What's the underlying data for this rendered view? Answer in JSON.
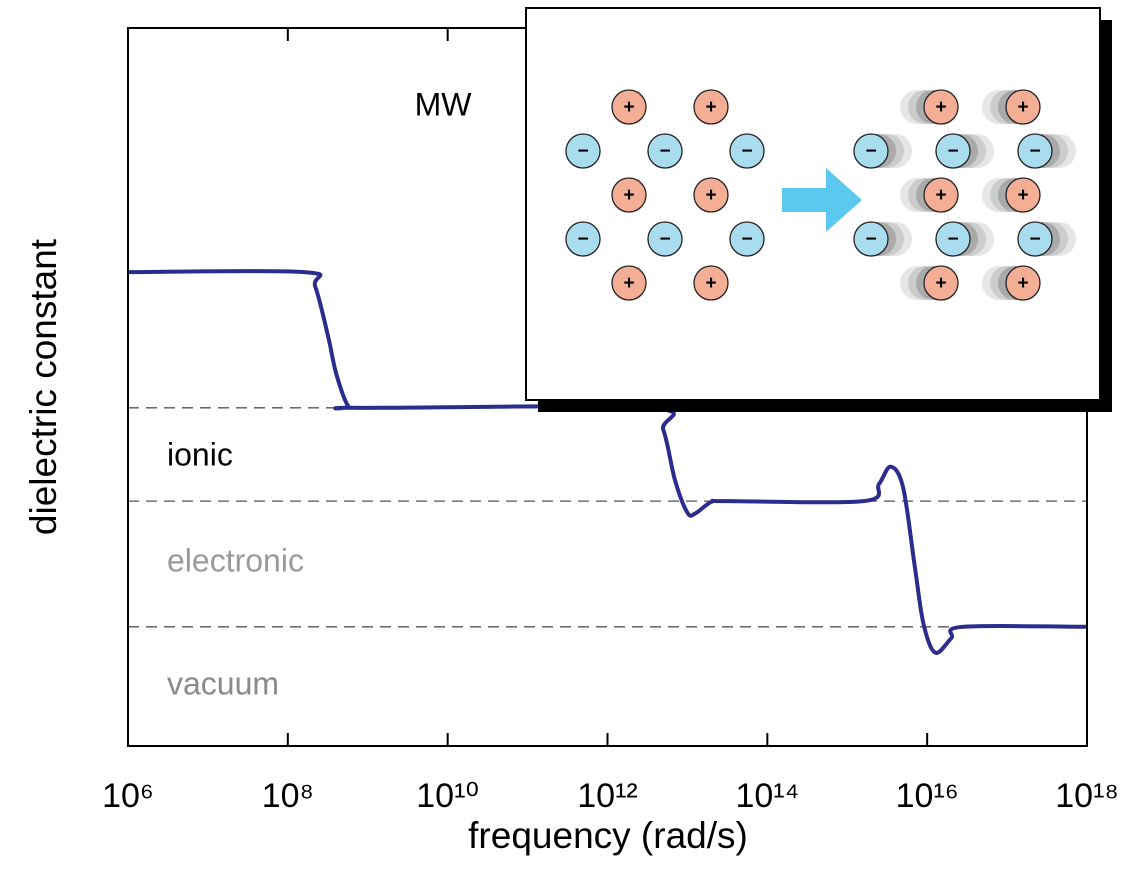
{
  "chart_data": {
    "type": "line",
    "xlabel": "frequency (rad/s)",
    "ylabel": "dielectric constant",
    "xscale": "log",
    "xlim": [
      1000000.0,
      1e+18
    ],
    "xticks": [
      {
        "value": 1000000.0,
        "label": "10⁶"
      },
      {
        "value": 100000000.0,
        "label": "10⁸"
      },
      {
        "value": 10000000000.0,
        "label": "10¹⁰"
      },
      {
        "value": 1000000000000.0,
        "label": "10¹²"
      },
      {
        "value": 100000000000000.0,
        "label": "10¹⁴"
      },
      {
        "value": 1e+16,
        "label": "10¹⁶"
      },
      {
        "value": 1e+18,
        "label": "10¹⁸"
      }
    ],
    "ylim": [
      0,
      100
    ],
    "color": "#2b2d8e",
    "x": [
      1000000.0,
      160000000.0,
      220000000.0,
      320000000.0,
      400000000.0,
      560000000.0,
      800000000.0,
      3200000000000.0,
      5000000000000.0,
      7000000000000.0,
      10000000000000.0,
      12600000000000.0,
      20000000000000.0,
      32000000000000.0,
      1600000000000000.0,
      2500000000000000.0,
      3500000000000000.0,
      5000000000000000.0,
      7000000000000000.0,
      9000000000000000.0,
      1.26e+16,
      2e+16,
      2.8e+16,
      1e+18
    ],
    "values": [
      66,
      66,
      64,
      57,
      52,
      47.5,
      47.1,
      47.1,
      44,
      37,
      32.5,
      32.4,
      34,
      34.1,
      34.1,
      36.5,
      38.9,
      36,
      25,
      17,
      13,
      15,
      16.6,
      16.6
    ],
    "hlines": [
      47.1,
      34.1,
      16.6
    ],
    "annotations": [
      "MW",
      "ionic",
      "electronic",
      "vacuum"
    ],
    "inset": {
      "cation": "+",
      "anion": "−"
    }
  }
}
